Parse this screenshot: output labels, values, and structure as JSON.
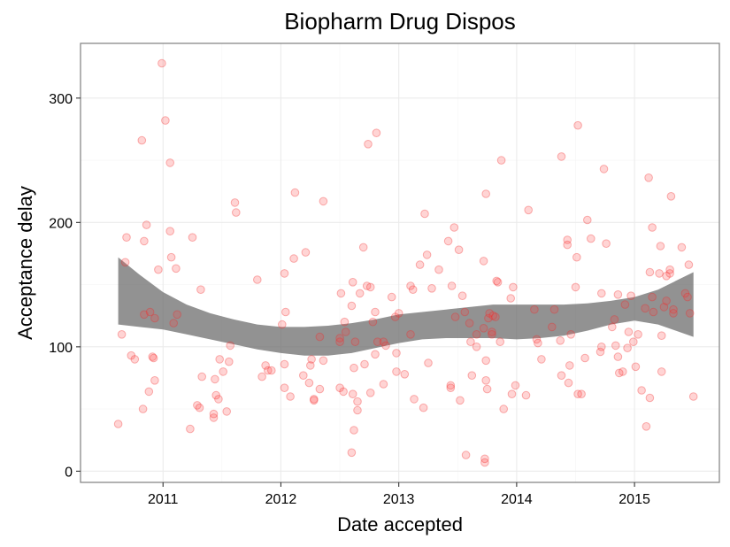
{
  "chart_data": {
    "type": "scatter",
    "title": "Biopharm Drug Dispos",
    "xlabel": "Date accepted",
    "ylabel": "Acceptance delay",
    "x_type": "year-decimal",
    "xlim": [
      2010.3,
      2015.72
    ],
    "ylim": [
      -9,
      344
    ],
    "xticks": [
      2011,
      2012,
      2013,
      2014,
      2015
    ],
    "xtick_labels": [
      "2011",
      "2012",
      "2013",
      "2014",
      "2015"
    ],
    "yticks": [
      0,
      100,
      200,
      300
    ],
    "ytick_labels": [
      "0",
      "100",
      "200",
      "300"
    ],
    "grid": true,
    "point_color": "#ff3c3c",
    "band_color": "#6e6e6e",
    "points": [
      [
        2010.62,
        38
      ],
      [
        2010.65,
        110
      ],
      [
        2010.68,
        168
      ],
      [
        2010.69,
        188
      ],
      [
        2010.73,
        93
      ],
      [
        2010.76,
        90
      ],
      [
        2010.82,
        266
      ],
      [
        2010.84,
        185
      ],
      [
        2010.84,
        126
      ],
      [
        2010.83,
        50
      ],
      [
        2010.86,
        198
      ],
      [
        2010.88,
        64
      ],
      [
        2010.89,
        128
      ],
      [
        2010.91,
        92
      ],
      [
        2010.93,
        123
      ],
      [
        2010.92,
        91
      ],
      [
        2010.93,
        73
      ],
      [
        2010.96,
        162
      ],
      [
        2010.99,
        328
      ],
      [
        2011.02,
        282
      ],
      [
        2011.06,
        248
      ],
      [
        2011.06,
        193
      ],
      [
        2011.07,
        172
      ],
      [
        2011.09,
        119
      ],
      [
        2011.11,
        163
      ],
      [
        2011.12,
        126
      ],
      [
        2011.23,
        34
      ],
      [
        2011.25,
        188
      ],
      [
        2011.29,
        53
      ],
      [
        2011.31,
        51
      ],
      [
        2011.32,
        146
      ],
      [
        2011.33,
        76
      ],
      [
        2011.43,
        43
      ],
      [
        2011.43,
        46
      ],
      [
        2011.44,
        74
      ],
      [
        2011.45,
        61
      ],
      [
        2011.47,
        58
      ],
      [
        2011.48,
        90
      ],
      [
        2011.51,
        80
      ],
      [
        2011.54,
        48
      ],
      [
        2011.56,
        88
      ],
      [
        2011.57,
        101
      ],
      [
        2011.61,
        216
      ],
      [
        2011.62,
        208
      ],
      [
        2011.8,
        154
      ],
      [
        2011.84,
        76
      ],
      [
        2011.87,
        85
      ],
      [
        2011.89,
        81
      ],
      [
        2011.92,
        81
      ],
      [
        2012.01,
        118
      ],
      [
        2012.03,
        67
      ],
      [
        2012.03,
        86
      ],
      [
        2012.03,
        159
      ],
      [
        2012.04,
        128
      ],
      [
        2012.08,
        60
      ],
      [
        2012.11,
        171
      ],
      [
        2012.12,
        224
      ],
      [
        2012.19,
        77
      ],
      [
        2012.21,
        176
      ],
      [
        2012.24,
        71
      ],
      [
        2012.25,
        85
      ],
      [
        2012.26,
        90
      ],
      [
        2012.28,
        57
      ],
      [
        2012.28,
        58
      ],
      [
        2012.33,
        108
      ],
      [
        2012.33,
        66
      ],
      [
        2012.36,
        89
      ],
      [
        2012.36,
        217
      ],
      [
        2012.5,
        104
      ],
      [
        2012.5,
        107
      ],
      [
        2012.5,
        67
      ],
      [
        2012.51,
        143
      ],
      [
        2012.53,
        64
      ],
      [
        2012.54,
        120
      ],
      [
        2012.55,
        112
      ],
      [
        2012.6,
        15
      ],
      [
        2012.61,
        62
      ],
      [
        2012.6,
        133
      ],
      [
        2012.61,
        152
      ],
      [
        2012.62,
        83
      ],
      [
        2012.63,
        104
      ],
      [
        2012.62,
        33
      ],
      [
        2012.65,
        56
      ],
      [
        2012.65,
        49
      ],
      [
        2012.67,
        143
      ],
      [
        2012.7,
        180
      ],
      [
        2012.71,
        86
      ],
      [
        2012.73,
        149
      ],
      [
        2012.74,
        263
      ],
      [
        2012.76,
        148
      ],
      [
        2012.76,
        63
      ],
      [
        2012.78,
        120
      ],
      [
        2012.8,
        128
      ],
      [
        2012.8,
        94
      ],
      [
        2012.81,
        272
      ],
      [
        2012.82,
        104
      ],
      [
        2012.87,
        70
      ],
      [
        2012.87,
        104
      ],
      [
        2012.89,
        101
      ],
      [
        2012.94,
        140
      ],
      [
        2012.97,
        124
      ],
      [
        2012.98,
        95
      ],
      [
        2012.98,
        80
      ],
      [
        2013.0,
        127
      ],
      [
        2013.05,
        78
      ],
      [
        2013.1,
        149
      ],
      [
        2013.1,
        110
      ],
      [
        2013.12,
        146
      ],
      [
        2013.13,
        58
      ],
      [
        2013.18,
        166
      ],
      [
        2013.21,
        51
      ],
      [
        2013.22,
        207
      ],
      [
        2013.24,
        174
      ],
      [
        2013.25,
        87
      ],
      [
        2013.28,
        147
      ],
      [
        2013.34,
        162
      ],
      [
        2013.42,
        185
      ],
      [
        2013.44,
        67
      ],
      [
        2013.44,
        69
      ],
      [
        2013.45,
        149
      ],
      [
        2013.47,
        196
      ],
      [
        2013.48,
        124
      ],
      [
        2013.51,
        178
      ],
      [
        2013.52,
        57
      ],
      [
        2013.54,
        141
      ],
      [
        2013.56,
        128
      ],
      [
        2013.57,
        13
      ],
      [
        2013.6,
        119
      ],
      [
        2013.61,
        104
      ],
      [
        2013.62,
        77
      ],
      [
        2013.66,
        110
      ],
      [
        2013.66,
        100
      ],
      [
        2013.72,
        115
      ],
      [
        2013.72,
        169
      ],
      [
        2013.73,
        10
      ],
      [
        2013.73,
        7
      ],
      [
        2013.74,
        223
      ],
      [
        2013.74,
        89
      ],
      [
        2013.74,
        73
      ],
      [
        2013.75,
        66
      ],
      [
        2013.76,
        123
      ],
      [
        2013.77,
        127
      ],
      [
        2013.79,
        110
      ],
      [
        2013.79,
        112
      ],
      [
        2013.8,
        125
      ],
      [
        2013.82,
        124
      ],
      [
        2013.83,
        153
      ],
      [
        2013.84,
        152
      ],
      [
        2013.86,
        104
      ],
      [
        2013.87,
        250
      ],
      [
        2013.89,
        50
      ],
      [
        2013.95,
        139
      ],
      [
        2013.96,
        62
      ],
      [
        2013.97,
        148
      ],
      [
        2013.99,
        69
      ],
      [
        2014.08,
        61
      ],
      [
        2014.1,
        210
      ],
      [
        2014.15,
        130
      ],
      [
        2014.17,
        106
      ],
      [
        2014.18,
        103
      ],
      [
        2014.21,
        90
      ],
      [
        2014.3,
        116
      ],
      [
        2014.32,
        130
      ],
      [
        2014.37,
        105
      ],
      [
        2014.38,
        77
      ],
      [
        2014.38,
        253
      ],
      [
        2014.43,
        186
      ],
      [
        2014.43,
        182
      ],
      [
        2014.44,
        71
      ],
      [
        2014.45,
        85
      ],
      [
        2014.46,
        110
      ],
      [
        2014.5,
        148
      ],
      [
        2014.51,
        172
      ],
      [
        2014.52,
        278
      ],
      [
        2014.52,
        62
      ],
      [
        2014.55,
        62
      ],
      [
        2014.58,
        91
      ],
      [
        2014.6,
        202
      ],
      [
        2014.63,
        187
      ],
      [
        2014.71,
        96
      ],
      [
        2014.72,
        143
      ],
      [
        2014.72,
        100
      ],
      [
        2014.74,
        243
      ],
      [
        2014.76,
        183
      ],
      [
        2014.81,
        116
      ],
      [
        2014.83,
        122
      ],
      [
        2014.84,
        101
      ],
      [
        2014.86,
        142
      ],
      [
        2014.86,
        92
      ],
      [
        2014.87,
        79
      ],
      [
        2014.9,
        80
      ],
      [
        2014.92,
        134
      ],
      [
        2014.94,
        99
      ],
      [
        2014.95,
        112
      ],
      [
        2014.97,
        141
      ],
      [
        2014.99,
        104
      ],
      [
        2015.01,
        84
      ],
      [
        2015.03,
        110
      ],
      [
        2015.06,
        65
      ],
      [
        2015.09,
        131
      ],
      [
        2015.1,
        36
      ],
      [
        2015.12,
        236
      ],
      [
        2015.13,
        160
      ],
      [
        2015.13,
        59
      ],
      [
        2015.15,
        196
      ],
      [
        2015.15,
        140
      ],
      [
        2015.16,
        128
      ],
      [
        2015.21,
        159
      ],
      [
        2015.22,
        181
      ],
      [
        2015.23,
        80
      ],
      [
        2015.23,
        109
      ],
      [
        2015.25,
        132
      ],
      [
        2015.27,
        137
      ],
      [
        2015.27,
        157
      ],
      [
        2015.3,
        159
      ],
      [
        2015.3,
        162
      ],
      [
        2015.31,
        221
      ],
      [
        2015.33,
        130
      ],
      [
        2015.33,
        127
      ],
      [
        2015.4,
        180
      ],
      [
        2015.43,
        143
      ],
      [
        2015.45,
        140
      ],
      [
        2015.46,
        166
      ],
      [
        2015.47,
        127
      ],
      [
        2015.5,
        60
      ]
    ],
    "band": {
      "x": [
        2010.62,
        2010.8,
        2011.0,
        2011.2,
        2011.4,
        2011.6,
        2011.8,
        2012.0,
        2012.2,
        2012.4,
        2012.6,
        2012.8,
        2013.0,
        2013.2,
        2013.4,
        2013.6,
        2013.8,
        2014.0,
        2014.2,
        2014.4,
        2014.6,
        2014.8,
        2015.0,
        2015.2,
        2015.5
      ],
      "upper": [
        172,
        158,
        144,
        134,
        127,
        122,
        118,
        116,
        116,
        117,
        119,
        122,
        126,
        128,
        130,
        132,
        134,
        134,
        134,
        134,
        135,
        137,
        140,
        146,
        160
      ],
      "lower": [
        118,
        116,
        114,
        110,
        106,
        102,
        98,
        95,
        93,
        93,
        95,
        99,
        103,
        106,
        107,
        107,
        107,
        106,
        107,
        109,
        113,
        118,
        121,
        118,
        108
      ]
    }
  }
}
